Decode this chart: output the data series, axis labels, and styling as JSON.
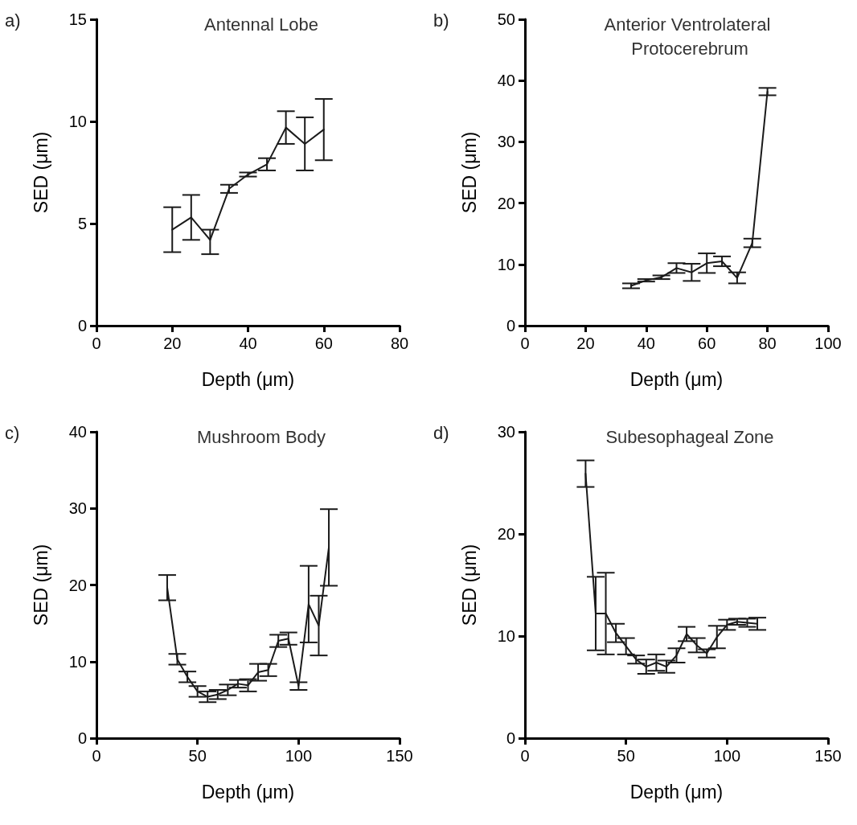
{
  "chart_data": [
    {
      "type": "line",
      "title": "Antennal Lobe",
      "xlabel": "Depth (μm)",
      "ylabel": "SED (μm)",
      "annotations": [
        "a)"
      ],
      "marker": "none",
      "line_style": "solid",
      "xlim": [
        0,
        80
      ],
      "xticks": [
        0,
        20,
        40,
        60,
        80
      ],
      "ylim": [
        0,
        15
      ],
      "yticks": [
        0,
        5,
        10,
        15
      ],
      "series": [
        {
          "color": "#1a1a1a",
          "x": [
            20,
            25,
            30,
            35,
            40,
            45,
            50,
            55,
            60
          ],
          "values": [
            4.7,
            5.3,
            4.2,
            6.7,
            7.4,
            7.9,
            9.7,
            8.9,
            9.6
          ],
          "errors": [
            1.1,
            1.1,
            [
              3.5,
              4.7
            ],
            0.2,
            0.1,
            0.3,
            0.8,
            1.3,
            1.5
          ]
        }
      ]
    },
    {
      "type": "line",
      "title": "Anterior Ventrolateral Protocerebrum",
      "xlabel": "Depth (μm)",
      "ylabel": "SED (μm)",
      "annotations": [
        "b)"
      ],
      "marker": "none",
      "line_style": "solid",
      "xlim": [
        0,
        100
      ],
      "xticks": [
        0,
        20,
        40,
        60,
        80,
        100
      ],
      "ylim": [
        0,
        50
      ],
      "yticks": [
        0,
        10,
        20,
        30,
        40,
        50
      ],
      "series": [
        {
          "color": "#1a1a1a",
          "x": [
            35,
            40,
            45,
            50,
            55,
            60,
            65,
            70,
            75,
            80
          ],
          "values": [
            6.5,
            7.4,
            7.9,
            9.4,
            8.7,
            10.2,
            10.5,
            7.8,
            13.5,
            38.2
          ],
          "errors": [
            0.4,
            0.2,
            0.3,
            0.8,
            1.4,
            1.6,
            0.8,
            0.9,
            0.7,
            0.6
          ]
        }
      ]
    },
    {
      "type": "line",
      "title": "Mushroom Body",
      "xlabel": "Depth (μm)",
      "ylabel": "SED (μm)",
      "annotations": [
        "c)"
      ],
      "marker": "none",
      "line_style": "solid",
      "xlim": [
        0,
        150
      ],
      "xticks": [
        0,
        50,
        100,
        150
      ],
      "ylim": [
        0,
        40
      ],
      "yticks": [
        0,
        10,
        20,
        30,
        40
      ],
      "series": [
        {
          "color": "#1a1a1a",
          "x": [
            35,
            40,
            45,
            50,
            55,
            60,
            65,
            70,
            75,
            80,
            85,
            90,
            95,
            100,
            105,
            110,
            115
          ],
          "values": [
            19.7,
            10.3,
            8.0,
            6.1,
            5.4,
            5.7,
            6.3,
            7.1,
            6.9,
            8.6,
            8.9,
            12.7,
            13.0,
            6.8,
            17.5,
            14.7,
            24.9
          ],
          "errors": [
            [
              18.0,
              21.3
            ],
            0.7,
            0.7,
            0.7,
            0.7,
            0.6,
            0.7,
            0.5,
            0.8,
            1.1,
            0.8,
            0.8,
            0.8,
            0.5,
            5.0,
            3.9,
            5.0
          ]
        }
      ]
    },
    {
      "type": "line",
      "title": "Subesophageal Zone",
      "xlabel": "Depth (μm)",
      "ylabel": "SED (μm)",
      "annotations": [
        "d)"
      ],
      "marker": "none",
      "line_style": "solid",
      "xlim": [
        0,
        150
      ],
      "xticks": [
        0,
        50,
        100,
        150
      ],
      "ylim": [
        0,
        30
      ],
      "yticks": [
        0,
        10,
        20,
        30
      ],
      "series": [
        {
          "color": "#1a1a1a",
          "x": [
            30,
            35,
            40,
            45,
            50,
            55,
            60,
            65,
            70,
            75,
            80,
            85,
            90,
            95,
            100,
            105,
            110,
            115
          ],
          "values": [
            25.9,
            12.2,
            12.2,
            10.3,
            9.0,
            7.7,
            7.0,
            7.4,
            7.0,
            8.1,
            10.2,
            9.1,
            8.3,
            9.9,
            11.1,
            11.4,
            11.3,
            11.2
          ],
          "errors": [
            1.3,
            3.6,
            4.0,
            0.9,
            0.8,
            0.4,
            0.7,
            0.8,
            0.6,
            0.7,
            0.7,
            0.7,
            0.4,
            1.1,
            0.5,
            0.3,
            0.4,
            0.6
          ]
        }
      ]
    }
  ]
}
